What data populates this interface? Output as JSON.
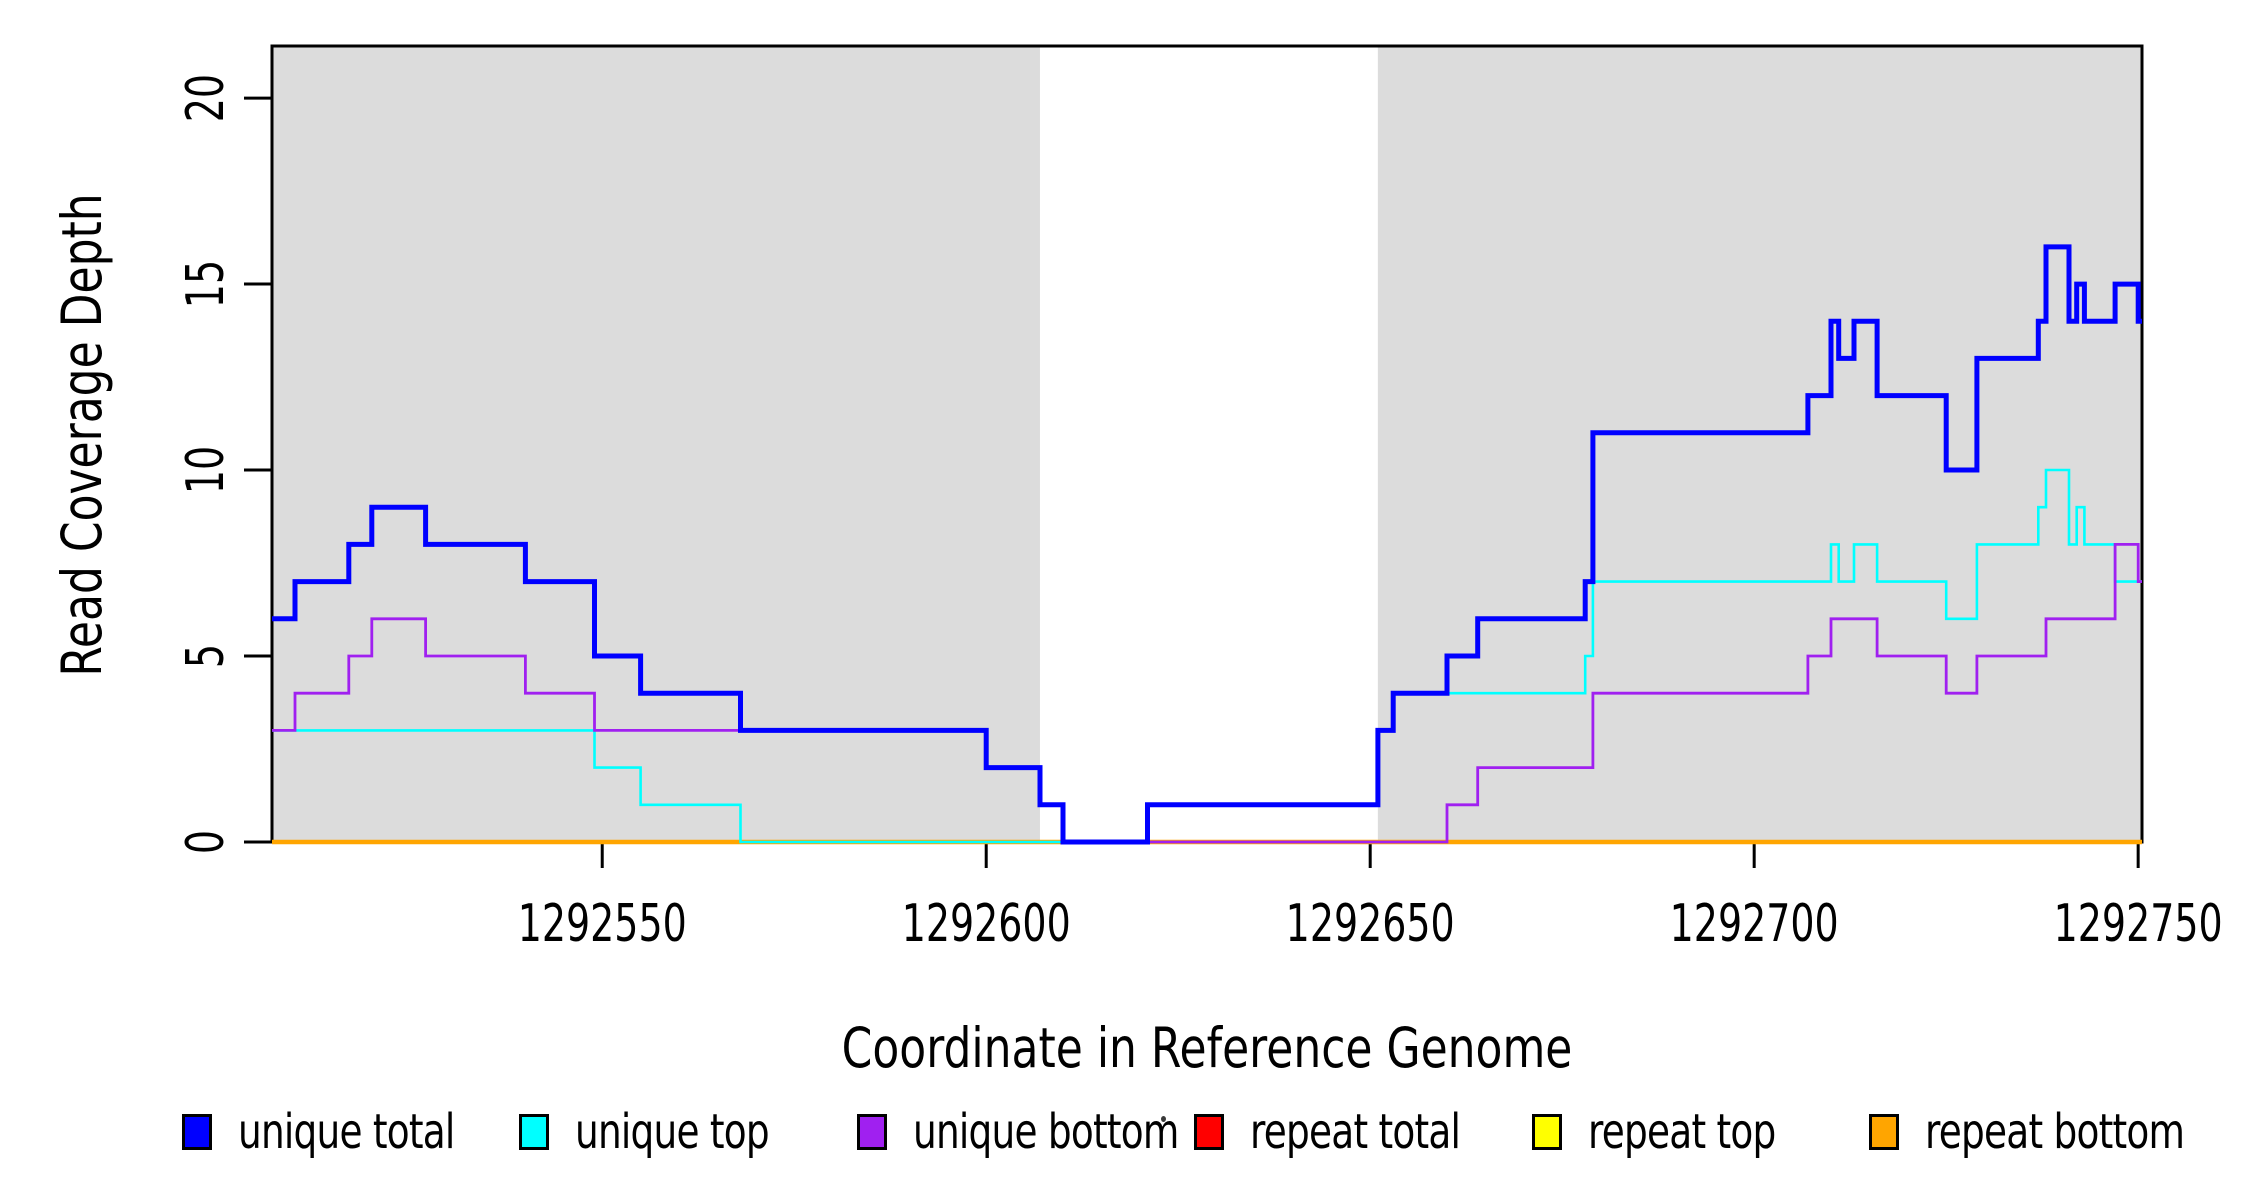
{
  "figure": {
    "background_color": "#FFFFFF",
    "text_color": "#000000",
    "box_color": "#000000",
    "highlight_band_color": "#DCDCDC"
  },
  "chart_data": {
    "type": "line",
    "subtype": "step",
    "title": "",
    "xlabel": "Coordinate in Reference Genome",
    "ylabel": "Read Coverage Depth",
    "x_range": [
      1292507,
      1292750.5
    ],
    "y_range": [
      0,
      21.4
    ],
    "grid": false,
    "x_ticks": [
      {
        "value": 1292550,
        "label": "1292550"
      },
      {
        "value": 1292600,
        "label": "1292600"
      },
      {
        "value": 1292650,
        "label": "1292650"
      },
      {
        "value": 1292700,
        "label": "1292700"
      },
      {
        "value": 1292750,
        "label": "1292750"
      }
    ],
    "y_ticks": [
      {
        "value": 0,
        "label": "0"
      },
      {
        "value": 5,
        "label": "5"
      },
      {
        "value": 10,
        "label": "10"
      },
      {
        "value": 15,
        "label": "15"
      },
      {
        "value": 20,
        "label": "20"
      }
    ],
    "shaded_x_bands": [
      {
        "from": 1292507,
        "to": 1292607
      },
      {
        "from": 1292651,
        "to": 1292750.5
      }
    ],
    "series": [
      {
        "name": "unique total",
        "color": "#0000FF",
        "line_width": 5.0,
        "steps": [
          [
            1292507,
            6
          ],
          [
            1292510,
            7
          ],
          [
            1292517,
            8
          ],
          [
            1292520,
            9
          ],
          [
            1292527,
            8
          ],
          [
            1292540,
            7
          ],
          [
            1292549,
            5
          ],
          [
            1292555,
            4
          ],
          [
            1292568,
            3
          ],
          [
            1292600,
            2
          ],
          [
            1292607,
            1
          ],
          [
            1292610,
            0
          ],
          [
            1292621,
            1
          ],
          [
            1292651,
            3
          ],
          [
            1292653,
            4
          ],
          [
            1292660,
            5
          ],
          [
            1292664,
            6
          ],
          [
            1292678,
            7
          ],
          [
            1292679,
            11
          ],
          [
            1292707,
            12
          ],
          [
            1292710,
            14
          ],
          [
            1292711,
            13
          ],
          [
            1292713,
            14
          ],
          [
            1292716,
            12
          ],
          [
            1292725,
            10
          ],
          [
            1292729,
            13
          ],
          [
            1292737,
            14
          ],
          [
            1292738,
            16
          ],
          [
            1292741,
            14
          ],
          [
            1292742,
            15
          ],
          [
            1292743,
            14
          ],
          [
            1292747,
            15
          ],
          [
            1292750,
            14
          ]
        ]
      },
      {
        "name": "unique top",
        "color": "#00FFFF",
        "line_width": 2.6,
        "steps": [
          [
            1292507,
            3
          ],
          [
            1292549,
            2
          ],
          [
            1292555,
            1
          ],
          [
            1292568,
            0
          ],
          [
            1292621,
            1
          ],
          [
            1292651,
            3
          ],
          [
            1292653,
            4
          ],
          [
            1292678,
            5
          ],
          [
            1292679,
            7
          ],
          [
            1292710,
            8
          ],
          [
            1292711,
            7
          ],
          [
            1292713,
            8
          ],
          [
            1292716,
            7
          ],
          [
            1292725,
            6
          ],
          [
            1292729,
            8
          ],
          [
            1292737,
            9
          ],
          [
            1292738,
            10
          ],
          [
            1292741,
            8
          ],
          [
            1292742,
            9
          ],
          [
            1292743,
            8
          ],
          [
            1292747,
            7
          ]
        ]
      },
      {
        "name": "unique bottom",
        "color": "#A020F0",
        "line_width": 2.8,
        "steps": [
          [
            1292507,
            3
          ],
          [
            1292510,
            4
          ],
          [
            1292517,
            5
          ],
          [
            1292520,
            6
          ],
          [
            1292527,
            5
          ],
          [
            1292540,
            4
          ],
          [
            1292549,
            3
          ],
          [
            1292600,
            2
          ],
          [
            1292607,
            1
          ],
          [
            1292610,
            0
          ],
          [
            1292660,
            1
          ],
          [
            1292664,
            2
          ],
          [
            1292679,
            4
          ],
          [
            1292707,
            5
          ],
          [
            1292710,
            6
          ],
          [
            1292716,
            5
          ],
          [
            1292725,
            4
          ],
          [
            1292729,
            5
          ],
          [
            1292738,
            6
          ],
          [
            1292747,
            8
          ],
          [
            1292750,
            7
          ]
        ]
      },
      {
        "name": "repeat total",
        "color": "#FF0000",
        "line_width": 2.4,
        "steps": [
          [
            1292507,
            0
          ]
        ]
      },
      {
        "name": "repeat top",
        "color": "#FFFF00",
        "line_width": 2.4,
        "steps": [
          [
            1292507,
            0
          ]
        ]
      },
      {
        "name": "repeat bottom",
        "color": "#FFA500",
        "line_width": 4.5,
        "steps": [
          [
            1292507,
            0
          ]
        ]
      }
    ],
    "draw_order": [
      "repeat total",
      "repeat top",
      "repeat bottom",
      "unique top",
      "unique bottom",
      "unique total"
    ],
    "legend_position": "bottom"
  }
}
